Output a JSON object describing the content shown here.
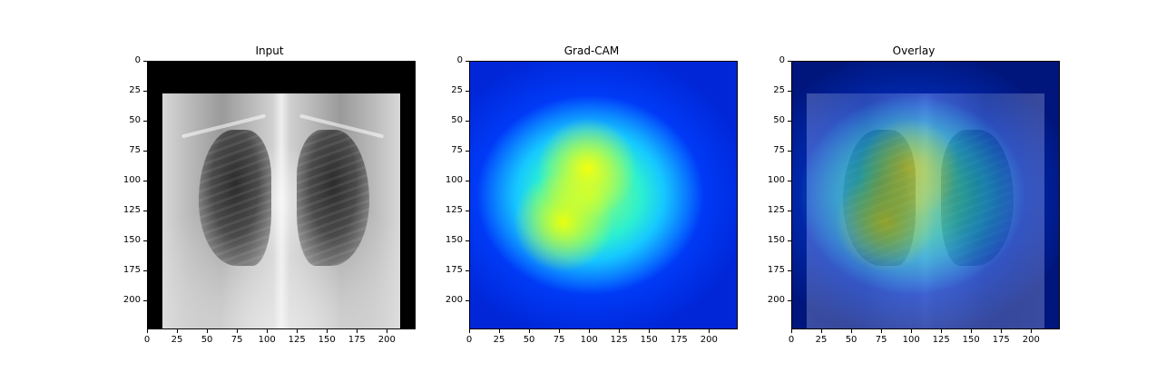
{
  "figure": {
    "panels": [
      {
        "title": "Input",
        "image": "chest-xray-grayscale"
      },
      {
        "title": "Grad-CAM",
        "image": "gradcam-heatmap-jet"
      },
      {
        "title": "Overlay",
        "image": "gradcam-overlay-on-xray"
      }
    ],
    "y_ticks": [
      "0",
      "25",
      "50",
      "75",
      "100",
      "125",
      "150",
      "175",
      "200"
    ],
    "x_ticks": [
      "0",
      "25",
      "50",
      "75",
      "100",
      "125",
      "150",
      "175",
      "200"
    ],
    "image_size": 224
  }
}
